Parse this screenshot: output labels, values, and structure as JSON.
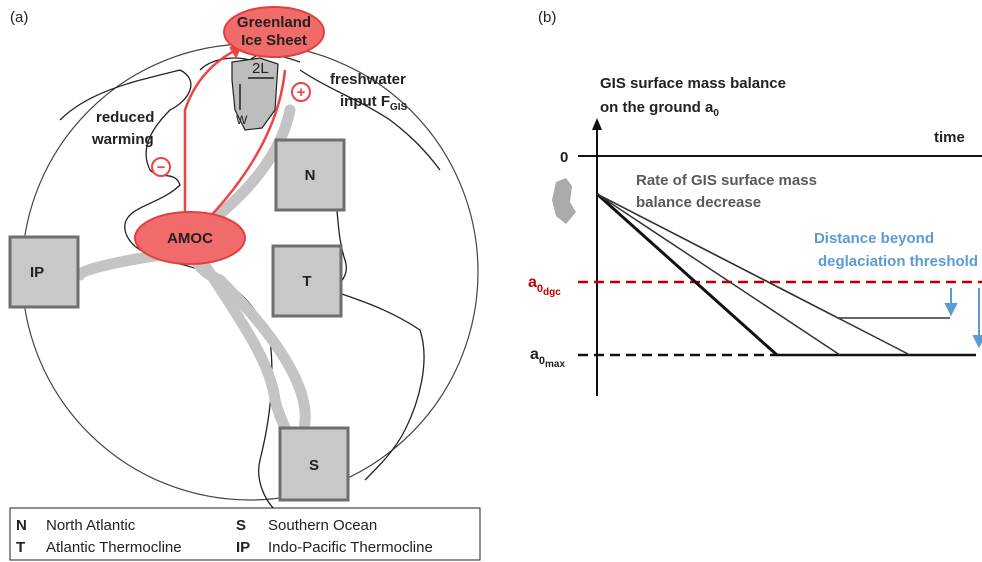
{
  "panel_a": {
    "label": "(a)",
    "greenland": [
      "Greenland",
      "Ice Sheet"
    ],
    "width_label": "2L",
    "height_label": "W",
    "freshwater": {
      "line1": "freshwater",
      "line2": "input F",
      "sub": "GIS"
    },
    "reduced_warming": [
      "reduced",
      "warming"
    ],
    "plus": "+",
    "minus": "−",
    "amoc": "AMOC",
    "boxes": [
      "N",
      "T",
      "IP",
      "S"
    ],
    "legend": [
      [
        "N",
        "North Atlantic",
        "S",
        "Southern Ocean"
      ],
      [
        "T",
        "Atlantic Thermocline",
        "IP",
        "Indo-Pacific Thermocline"
      ]
    ]
  },
  "panel_b": {
    "label": "(b)",
    "y_title": {
      "line1": "GIS surface mass balance",
      "line2": "on the ground a",
      "sub": "0"
    },
    "x_title": "time",
    "zero": "0",
    "rate": [
      "Rate of GIS surface mass",
      "balance decrease"
    ],
    "distance": [
      "Distance beyond",
      "deglaciation threshold"
    ],
    "a_dgc": {
      "base": "a",
      "sub": "0",
      "subsub": "dgc"
    },
    "a_max": {
      "base": "a",
      "sub": "0",
      "subsub": "max"
    }
  }
}
